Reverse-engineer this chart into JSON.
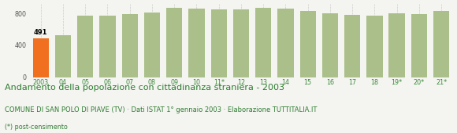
{
  "categories": [
    "2003",
    "04",
    "05",
    "06",
    "07",
    "08",
    "09",
    "10",
    "11*",
    "12",
    "13",
    "14",
    "15",
    "16",
    "17",
    "18",
    "19*",
    "20*",
    "21*"
  ],
  "values": [
    491,
    530,
    770,
    770,
    790,
    815,
    870,
    860,
    855,
    850,
    870,
    860,
    835,
    805,
    785,
    770,
    800,
    795,
    835
  ],
  "orange_color": "#F07020",
  "green_color": "#AABF8A",
  "highlight_index": 0,
  "highlight_value": 491,
  "ylim": [
    0,
    920
  ],
  "yticks": [
    0,
    400,
    800
  ],
  "title": "Andamento della popolazione con cittadinanza straniera - 2003",
  "subtitle": "COMUNE DI SAN POLO DI PIAVE (TV) · Dati ISTAT 1° gennaio 2003 · Elaborazione TUTTITALIA.IT",
  "footnote": "(*) post-censimento",
  "title_fontsize": 8.0,
  "subtitle_fontsize": 6.0,
  "footnote_fontsize": 5.8,
  "tick_fontsize": 5.8,
  "bg_color": "#F4F4F0",
  "grid_color": "#CCCCCC",
  "text_color_title": "#2E7D32",
  "text_color_sub": "#2E7D32"
}
